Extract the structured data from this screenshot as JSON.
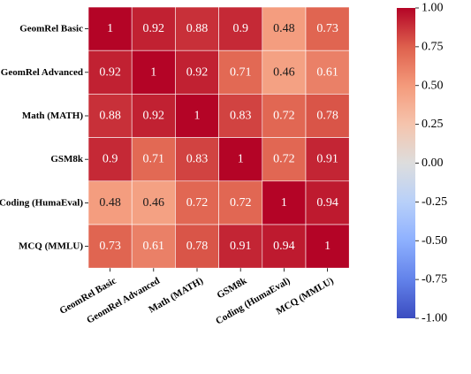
{
  "chart_data": {
    "type": "heatmap",
    "row_labels": [
      "GeomRel Basic",
      "GeomRel Advanced",
      "Math (MATH)",
      "GSM8k",
      "Coding (HumaEval)",
      "MCQ (MMLU)"
    ],
    "col_labels": [
      "GeomRel Basic",
      "GeomRel Advanced",
      "Math (MATH)",
      "GSM8k",
      "Coding (HumaEval)",
      "MCQ (MMLU)"
    ],
    "values": [
      [
        1,
        0.92,
        0.88,
        0.9,
        0.48,
        0.73
      ],
      [
        0.92,
        1,
        0.92,
        0.71,
        0.46,
        0.61
      ],
      [
        0.88,
        0.92,
        1,
        0.83,
        0.72,
        0.78
      ],
      [
        0.9,
        0.71,
        0.83,
        1,
        0.72,
        0.91
      ],
      [
        0.48,
        0.46,
        0.72,
        0.72,
        1,
        0.94
      ],
      [
        0.73,
        0.61,
        0.78,
        0.91,
        0.94,
        1
      ]
    ],
    "cell_labels": [
      [
        "1",
        "0.92",
        "0.88",
        "0.9",
        "0.48",
        "0.73"
      ],
      [
        "0.92",
        "1",
        "0.92",
        "0.71",
        "0.46",
        "0.61"
      ],
      [
        "0.88",
        "0.92",
        "1",
        "0.83",
        "0.72",
        "0.78"
      ],
      [
        "0.9",
        "0.71",
        "0.83",
        "1",
        "0.72",
        "0.91"
      ],
      [
        "0.48",
        "0.46",
        "0.72",
        "0.72",
        "1",
        "0.94"
      ],
      [
        "0.73",
        "0.61",
        "0.78",
        "0.91",
        "0.94",
        "1"
      ]
    ],
    "vmin": -1,
    "vmax": 1,
    "colormap": "coolwarm",
    "colorbar_ticks": [
      "1.00",
      "0.75",
      "0.50",
      "0.25",
      "0.00",
      "-0.25",
      "-0.50",
      "-0.75",
      "-1.00"
    ],
    "colorbar_tick_values": [
      1,
      0.75,
      0.5,
      0.25,
      0,
      -0.25,
      -0.5,
      -0.75,
      -1
    ],
    "colors": {
      "low": "#3b4cc0",
      "mid": "#dddddd",
      "high": "#b40426",
      "cell_border": "#ffffff"
    }
  }
}
